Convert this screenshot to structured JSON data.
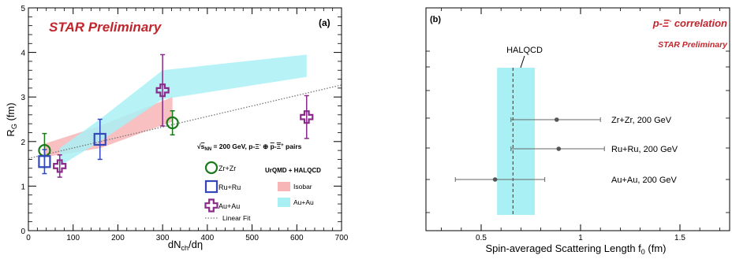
{
  "chart_data": [
    {
      "type": "scatter",
      "panel_label": "(a)",
      "title": "STAR Preliminary",
      "xlabel": "dN_ch/dη",
      "ylabel": "R_G (fm)",
      "xlim": [
        0,
        700
      ],
      "ylim": [
        0,
        5
      ],
      "x_ticks": [
        "0",
        "100",
        "200",
        "300",
        "400",
        "500",
        "600",
        "700"
      ],
      "y_ticks": [
        "0",
        "1",
        "2",
        "3",
        "4",
        "5"
      ],
      "legend_header": "√s_NN = 200 GeV, p-Ξ⁻ ⊕ p̄-Ξ̄⁺ pairs",
      "model_header": "UrQMD + HALQCD",
      "series": [
        {
          "name": "Zr+Zr",
          "marker": "circle",
          "color": "#1a7a1a",
          "x": [
            36,
            322
          ],
          "y": [
            1.8,
            2.42
          ],
          "err": [
            0.38,
            0.27
          ]
        },
        {
          "name": "Ru+Ru",
          "marker": "square",
          "color": "#3347b8",
          "x": [
            36,
            160
          ],
          "y": [
            1.55,
            2.05
          ],
          "err": [
            0.27,
            0.45
          ]
        },
        {
          "name": "Au+Au",
          "marker": "cross",
          "color": "#8a2a8a",
          "x": [
            70,
            300,
            622
          ],
          "y": [
            1.45,
            3.15,
            2.55
          ],
          "err": [
            0.25,
            0.8,
            0.48
          ]
        }
      ],
      "bands": [
        {
          "name": "Isobar",
          "color": "#f7b5b5",
          "x": [
            36,
            160,
            322
          ],
          "upper": [
            1.95,
            2.35,
            3.0
          ],
          "lower": [
            1.65,
            1.85,
            2.45
          ]
        },
        {
          "name": "Au+Au",
          "color": "#a9f0f5",
          "x": [
            70,
            160,
            300,
            622
          ],
          "upper": [
            1.85,
            2.5,
            3.6,
            3.95
          ],
          "lower": [
            1.45,
            2.0,
            2.95,
            3.45
          ]
        }
      ],
      "linear_fit": {
        "name": "Linear Fit",
        "x": [
          0,
          700
        ],
        "y": [
          1.62,
          3.27
        ]
      }
    },
    {
      "type": "scatter",
      "panel_label": "(b)",
      "title": "p-Ξ⁻ correlation",
      "subtitle": "STAR Preliminary",
      "xlabel": "Spin-averaged Scattering Length f₀ (fm)",
      "xlim": [
        0.3,
        1.8
      ],
      "x_ticks": [
        "0.5",
        "1",
        "1.5"
      ],
      "points": [
        {
          "label": "Zr+Zr, 200 GeV",
          "value": 0.88,
          "err_low": 0.23,
          "err_high": 0.22
        },
        {
          "label": "Ru+Ru, 200 GeV",
          "value": 0.89,
          "err_low": 0.24,
          "err_high": 0.23
        },
        {
          "label": "Au+Au, 200 GeV",
          "value": 0.57,
          "err_low": 0.2,
          "err_high": 0.25
        }
      ],
      "halqcd": {
        "label": "HALQCD",
        "value": 0.66,
        "band": [
          0.58,
          0.77
        ],
        "color": "#a9f0f5"
      }
    }
  ]
}
